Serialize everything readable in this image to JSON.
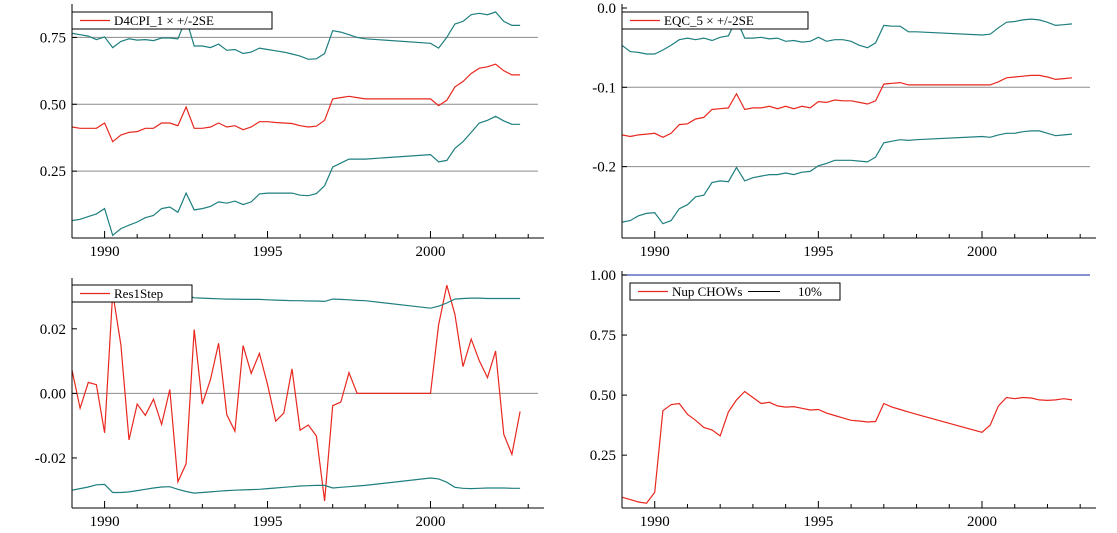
{
  "chart_data": [
    {
      "type": "line",
      "legend": {
        "label": "D4CPI_1 × +/-2SE",
        "placement": "top-left"
      },
      "xlim": [
        1989.0,
        2003.3
      ],
      "ylim": [
        0.0,
        0.86
      ],
      "x_ticks": [
        1990,
        1995,
        2000
      ],
      "y_ticks": [
        0.25,
        0.5,
        0.75
      ],
      "y_tick_labels": [
        "0.25",
        "0.50",
        "0.75"
      ],
      "grid_y": [
        0.25,
        0.5,
        0.75
      ],
      "colors": {
        "estimate": "#e8281f",
        "band": "#1f7f7f",
        "grid": "#8c8c8c"
      },
      "x": [
        1989.0,
        1989.25,
        1989.5,
        1989.75,
        1990.0,
        1990.25,
        1990.5,
        1990.75,
        1991.0,
        1991.25,
        1991.5,
        1991.75,
        1992.0,
        1992.25,
        1992.5,
        1992.75,
        1993.0,
        1993.25,
        1993.5,
        1993.75,
        1994.0,
        1994.25,
        1994.5,
        1994.75,
        1995.0,
        1995.25,
        1995.5,
        1995.75,
        1996.0,
        1996.25,
        1996.5,
        1996.75,
        1997.0,
        1997.25,
        1997.5,
        1997.75,
        1998.0,
        2000.0,
        2000.25,
        2000.5,
        2000.75,
        2001.0,
        2001.25,
        2001.5,
        2001.75,
        2002.0,
        2002.25,
        2002.5,
        2002.75
      ],
      "series": [
        {
          "role": "estimate",
          "values": [
            0.415,
            0.41,
            0.41,
            0.41,
            0.43,
            0.36,
            0.385,
            0.395,
            0.398,
            0.41,
            0.41,
            0.43,
            0.43,
            0.42,
            0.49,
            0.41,
            0.41,
            0.415,
            0.43,
            0.415,
            0.42,
            0.405,
            0.415,
            0.435,
            0.435,
            0.432,
            0.43,
            0.428,
            0.42,
            0.415,
            0.418,
            0.44,
            0.52,
            0.525,
            0.53,
            0.525,
            0.52,
            0.52,
            0.495,
            0.515,
            0.565,
            0.585,
            0.615,
            0.635,
            0.64,
            0.65,
            0.625,
            0.61,
            0.61
          ]
        },
        {
          "role": "upper",
          "values": [
            0.765,
            0.76,
            0.755,
            0.742,
            0.752,
            0.712,
            0.735,
            0.745,
            0.74,
            0.742,
            0.738,
            0.748,
            0.748,
            0.745,
            0.82,
            0.718,
            0.718,
            0.712,
            0.725,
            0.702,
            0.705,
            0.69,
            0.695,
            0.71,
            0.705,
            0.7,
            0.695,
            0.688,
            0.68,
            0.668,
            0.67,
            0.69,
            0.775,
            0.77,
            0.76,
            0.75,
            0.745,
            0.728,
            0.71,
            0.75,
            0.8,
            0.81,
            0.835,
            0.84,
            0.835,
            0.845,
            0.81,
            0.795,
            0.795
          ]
        },
        {
          "role": "lower",
          "values": [
            0.065,
            0.07,
            0.08,
            0.09,
            0.11,
            0.01,
            0.035,
            0.048,
            0.06,
            0.076,
            0.084,
            0.11,
            0.116,
            0.096,
            0.168,
            0.105,
            0.11,
            0.118,
            0.135,
            0.13,
            0.138,
            0.125,
            0.135,
            0.165,
            0.168,
            0.168,
            0.168,
            0.168,
            0.16,
            0.158,
            0.166,
            0.195,
            0.265,
            0.28,
            0.295,
            0.295,
            0.295,
            0.312,
            0.285,
            0.29,
            0.335,
            0.36,
            0.395,
            0.43,
            0.44,
            0.455,
            0.438,
            0.425,
            0.425
          ]
        }
      ]
    },
    {
      "type": "line",
      "legend": {
        "label": "EQC_5 × +/-2SE",
        "placement": "top-left"
      },
      "xlim": [
        1989.0,
        2003.3
      ],
      "ylim": [
        -0.29,
        0.0
      ],
      "x_ticks": [
        1990,
        1995,
        2000
      ],
      "y_ticks": [
        0.0,
        -0.1,
        -0.2
      ],
      "y_tick_labels": [
        "0.0",
        "-0.1",
        "-0.2"
      ],
      "grid_y": [
        -0.1,
        -0.2
      ],
      "colors": {
        "estimate": "#e8281f",
        "band": "#1f7f7f",
        "grid": "#8c8c8c"
      },
      "x": [
        1989.0,
        1989.25,
        1989.5,
        1989.75,
        1990.0,
        1990.25,
        1990.5,
        1990.75,
        1991.0,
        1991.25,
        1991.5,
        1991.75,
        1992.0,
        1992.25,
        1992.5,
        1992.75,
        1993.0,
        1993.25,
        1993.5,
        1993.75,
        1994.0,
        1994.25,
        1994.5,
        1994.75,
        1995.0,
        1995.25,
        1995.5,
        1995.75,
        1996.0,
        1996.25,
        1996.5,
        1996.75,
        1997.0,
        1997.25,
        1997.5,
        1997.75,
        1998.0,
        2000.0,
        2000.25,
        2000.5,
        2000.75,
        2001.0,
        2001.25,
        2001.5,
        2001.75,
        2002.0,
        2002.25,
        2002.5,
        2002.75
      ],
      "series": [
        {
          "role": "estimate",
          "values": [
            -0.16,
            -0.162,
            -0.16,
            -0.159,
            -0.158,
            -0.163,
            -0.158,
            -0.147,
            -0.146,
            -0.14,
            -0.138,
            -0.128,
            -0.127,
            -0.126,
            -0.108,
            -0.128,
            -0.126,
            -0.126,
            -0.124,
            -0.127,
            -0.124,
            -0.127,
            -0.124,
            -0.126,
            -0.118,
            -0.119,
            -0.116,
            -0.117,
            -0.117,
            -0.119,
            -0.121,
            -0.117,
            -0.096,
            -0.095,
            -0.094,
            -0.097,
            -0.097,
            -0.097,
            -0.097,
            -0.093,
            -0.088,
            -0.087,
            -0.086,
            -0.085,
            -0.085,
            -0.087,
            -0.09,
            -0.089,
            -0.088
          ]
        },
        {
          "role": "upper",
          "values": [
            -0.047,
            -0.055,
            -0.056,
            -0.058,
            -0.058,
            -0.053,
            -0.047,
            -0.04,
            -0.038,
            -0.04,
            -0.038,
            -0.041,
            -0.037,
            -0.035,
            -0.014,
            -0.038,
            -0.038,
            -0.037,
            -0.039,
            -0.038,
            -0.042,
            -0.041,
            -0.043,
            -0.042,
            -0.037,
            -0.042,
            -0.04,
            -0.04,
            -0.042,
            -0.047,
            -0.05,
            -0.044,
            -0.022,
            -0.023,
            -0.023,
            -0.03,
            -0.03,
            -0.034,
            -0.033,
            -0.025,
            -0.018,
            -0.017,
            -0.015,
            -0.014,
            -0.015,
            -0.018,
            -0.022,
            -0.021,
            -0.02
          ]
        },
        {
          "role": "lower",
          "values": [
            -0.27,
            -0.268,
            -0.262,
            -0.259,
            -0.258,
            -0.272,
            -0.268,
            -0.253,
            -0.248,
            -0.238,
            -0.236,
            -0.22,
            -0.218,
            -0.219,
            -0.201,
            -0.218,
            -0.214,
            -0.212,
            -0.21,
            -0.21,
            -0.208,
            -0.21,
            -0.207,
            -0.206,
            -0.199,
            -0.196,
            -0.192,
            -0.192,
            -0.192,
            -0.193,
            -0.194,
            -0.188,
            -0.17,
            -0.168,
            -0.166,
            -0.167,
            -0.166,
            -0.162,
            -0.163,
            -0.16,
            -0.158,
            -0.158,
            -0.156,
            -0.155,
            -0.155,
            -0.158,
            -0.161,
            -0.16,
            -0.159
          ]
        }
      ]
    },
    {
      "type": "line",
      "legend": {
        "label": "Res1Step",
        "placement": "top-left"
      },
      "xlim": [
        1989.0,
        2003.3
      ],
      "ylim": [
        -0.0355,
        0.0345
      ],
      "x_ticks": [
        1990,
        1995,
        2000
      ],
      "y_ticks": [
        0.02,
        0.0,
        -0.02
      ],
      "y_tick_labels": [
        "0.02",
        "0.00",
        "-0.02"
      ],
      "grid_y": [
        0.0
      ],
      "colors": {
        "estimate": "#e8281f",
        "band": "#1f7f7f",
        "grid": "#8c8c8c"
      },
      "x": [
        1989.0,
        1989.25,
        1989.5,
        1989.75,
        1990.0,
        1990.25,
        1990.5,
        1990.75,
        1991.0,
        1991.25,
        1991.5,
        1991.75,
        1992.0,
        1992.25,
        1992.5,
        1992.75,
        1993.0,
        1993.25,
        1993.5,
        1993.75,
        1994.0,
        1994.25,
        1994.5,
        1994.75,
        1995.0,
        1995.25,
        1995.5,
        1995.75,
        1996.0,
        1996.25,
        1996.5,
        1996.75,
        1997.0,
        1997.25,
        1997.5,
        1997.75,
        1998.0,
        2000.0,
        2000.25,
        2000.5,
        2000.75,
        2001.0,
        2001.25,
        2001.5,
        2001.75,
        2002.0,
        2002.25,
        2002.5,
        2002.75
      ],
      "series": [
        {
          "role": "estimate",
          "values": [
            0.0072,
            -0.0046,
            0.0034,
            0.0027,
            -0.0122,
            0.0312,
            0.015,
            -0.0144,
            -0.0033,
            -0.0068,
            -0.0018,
            -0.0096,
            0.0012,
            -0.0274,
            -0.0218,
            0.0198,
            -0.0033,
            0.0043,
            0.0155,
            -0.0066,
            -0.0117,
            0.0148,
            0.0062,
            0.0124,
            0.0028,
            -0.0086,
            -0.0061,
            0.0076,
            -0.0114,
            -0.0098,
            -0.0132,
            -0.0333,
            -0.0038,
            -0.0027,
            0.0064,
            0.0,
            0.0,
            0.0,
            0.0212,
            0.0335,
            0.0245,
            0.0083,
            0.0168,
            0.0101,
            0.0049,
            0.0131,
            -0.0127,
            -0.0189,
            -0.0056
          ]
        },
        {
          "role": "upper",
          "values": [
            0.03,
            0.0298,
            0.0295,
            0.0292,
            0.0288,
            0.0306,
            0.0305,
            0.0301,
            0.0299,
            0.0297,
            0.0295,
            0.0295,
            0.0294,
            0.0292,
            0.0305,
            0.0296,
            0.0295,
            0.0294,
            0.0293,
            0.0292,
            0.0292,
            0.0291,
            0.0291,
            0.0291,
            0.029,
            0.0289,
            0.0288,
            0.0287,
            0.0287,
            0.0286,
            0.0286,
            0.0285,
            0.0292,
            0.0291,
            0.029,
            0.0288,
            0.0287,
            0.0264,
            0.027,
            0.028,
            0.0292,
            0.0294,
            0.0295,
            0.0295,
            0.0294,
            0.0294,
            0.0294,
            0.0294,
            0.0294
          ]
        },
        {
          "role": "lower",
          "values": [
            -0.03,
            -0.0295,
            -0.029,
            -0.0283,
            -0.0282,
            -0.0307,
            -0.0307,
            -0.0305,
            -0.0301,
            -0.0297,
            -0.0293,
            -0.029,
            -0.0289,
            -0.0297,
            -0.0304,
            -0.0309,
            -0.0307,
            -0.0305,
            -0.0303,
            -0.0301,
            -0.03,
            -0.0299,
            -0.0298,
            -0.0297,
            -0.0295,
            -0.0293,
            -0.0291,
            -0.0289,
            -0.0287,
            -0.0286,
            -0.0285,
            -0.0285,
            -0.0293,
            -0.0291,
            -0.0289,
            -0.0287,
            -0.0285,
            -0.0262,
            -0.0265,
            -0.0275,
            -0.0291,
            -0.0294,
            -0.0295,
            -0.0294,
            -0.0293,
            -0.0293,
            -0.0293,
            -0.0294,
            -0.0294
          ]
        }
      ]
    },
    {
      "type": "line",
      "legend": {
        "label": "Nup CHOWs",
        "label2": "10%",
        "placement": "top-left"
      },
      "xlim": [
        1989.0,
        2003.3
      ],
      "ylim": [
        0.03,
        1.0
      ],
      "x_ticks": [
        1990,
        1995,
        2000
      ],
      "y_ticks": [
        1.0,
        0.75,
        0.5,
        0.25
      ],
      "y_tick_labels": [
        "1.00",
        "0.75",
        "0.50",
        "0.25"
      ],
      "grid_y": [],
      "critical_value": 1.0,
      "colors": {
        "estimate": "#e8281f",
        "critical": "#3a4fb8"
      },
      "x": [
        1989.0,
        1989.25,
        1989.5,
        1989.75,
        1990.0,
        1990.25,
        1990.5,
        1990.75,
        1991.0,
        1991.25,
        1991.5,
        1991.75,
        1992.0,
        1992.25,
        1992.5,
        1992.75,
        1993.0,
        1993.25,
        1993.5,
        1993.75,
        1994.0,
        1994.25,
        1994.5,
        1994.75,
        1995.0,
        1995.25,
        1995.5,
        1995.75,
        1996.0,
        1996.25,
        1996.5,
        1996.75,
        1997.0,
        1997.25,
        1997.5,
        1997.75,
        1998.0,
        2000.0,
        2000.25,
        2000.5,
        2000.75,
        2001.0,
        2001.25,
        2001.5,
        2001.75,
        2002.0,
        2002.25,
        2002.5,
        2002.75
      ],
      "series": [
        {
          "role": "estimate",
          "values": [
            0.075,
            0.065,
            0.055,
            0.05,
            0.095,
            0.435,
            0.46,
            0.465,
            0.42,
            0.395,
            0.365,
            0.355,
            0.33,
            0.43,
            0.48,
            0.515,
            0.49,
            0.465,
            0.47,
            0.455,
            0.45,
            0.452,
            0.445,
            0.438,
            0.44,
            0.425,
            0.415,
            0.405,
            0.395,
            0.392,
            0.388,
            0.39,
            0.465,
            0.45,
            0.44,
            0.43,
            0.42,
            0.345,
            0.375,
            0.455,
            0.49,
            0.485,
            0.49,
            0.488,
            0.48,
            0.478,
            0.48,
            0.485,
            0.48
          ]
        }
      ]
    }
  ]
}
